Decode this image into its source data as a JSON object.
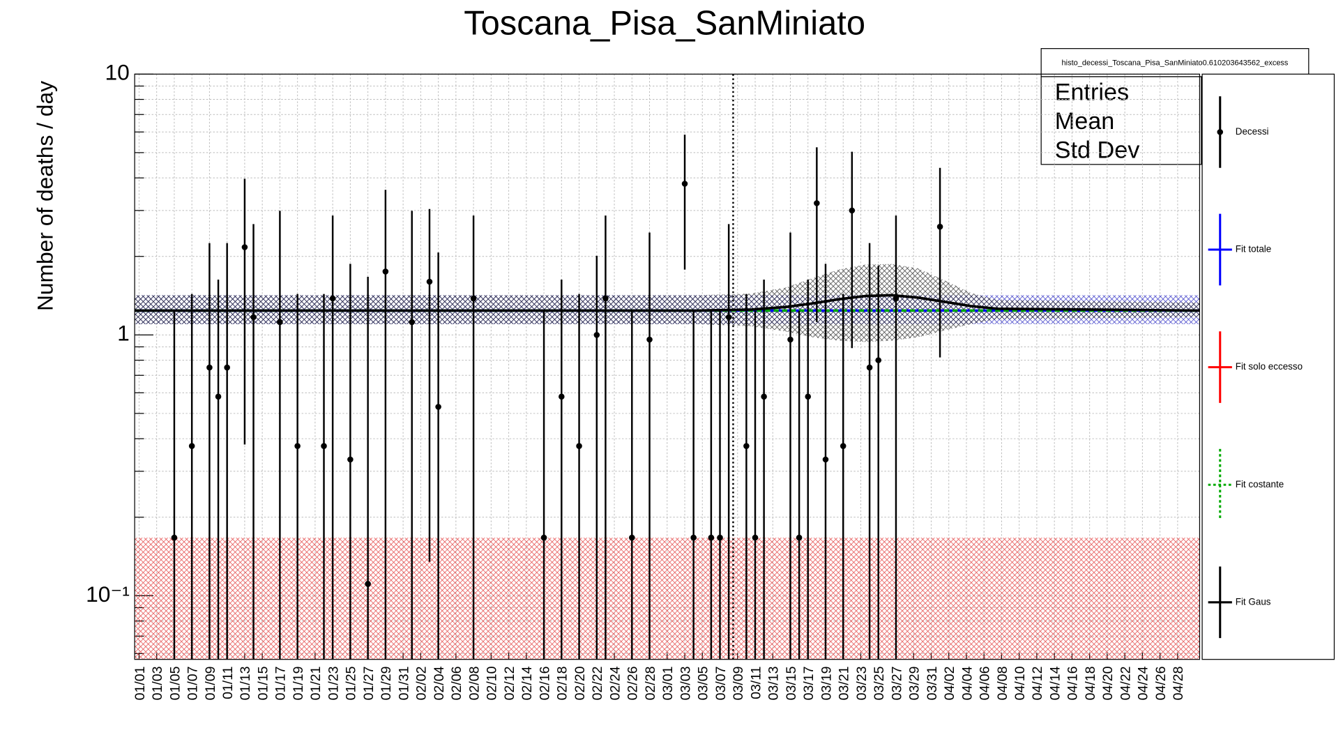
{
  "chart_data": {
    "type": "errorbar",
    "title": "Toscana_Pisa_SanMiniato",
    "y_label": "Number of deaths / day",
    "histogram_title": "histo_decessi_Toscana_Pisa_SanMiniato0.610203643562_excess",
    "stats_labels": [
      "Entries",
      "Mean",
      "Std Dev"
    ],
    "log_y": true,
    "grid": true,
    "categories": [
      "01/01",
      null,
      "01/03",
      null,
      "01/05",
      null,
      "01/07",
      null,
      "01/09",
      null,
      "01/11",
      null,
      "01/13",
      null,
      "01/15",
      null,
      "01/17",
      null,
      "01/19",
      null,
      "01/21",
      null,
      "01/23",
      null,
      "01/25",
      null,
      "01/27",
      null,
      "01/29",
      null,
      "01/31",
      null,
      "02/02",
      null,
      "02/04",
      null,
      "02/06",
      null,
      "02/08",
      null,
      "02/10",
      null,
      "02/12",
      null,
      "02/14",
      null,
      "02/16",
      null,
      "02/18",
      null,
      "02/20",
      null,
      "02/22",
      null,
      "02/24",
      null,
      "02/26",
      null,
      "02/28",
      null,
      "03/01",
      null,
      "03/03",
      null,
      "03/05",
      null,
      "03/07",
      null,
      "03/09",
      null,
      "03/11",
      null,
      "03/13",
      null,
      "03/15",
      null,
      "03/17",
      null,
      "03/19",
      null,
      "03/21",
      null,
      "03/23",
      null,
      "03/25",
      null,
      "03/27",
      null,
      "03/29",
      null,
      "03/31",
      null,
      "04/02",
      null,
      "04/04",
      null,
      "04/06",
      null,
      "04/08",
      null,
      "04/10",
      null,
      "04/12",
      null,
      "04/14",
      null,
      "04/16",
      null,
      "04/18",
      null,
      "04/20",
      null,
      "04/22",
      null,
      "04/24",
      null,
      "04/26",
      null,
      "04/28",
      null,
      null
    ],
    "xlim": [
      0,
      121
    ],
    "ylim": [
      0.057,
      10
    ],
    "yticks": [
      {
        "value": 0.1,
        "label": "10⁻¹"
      },
      1,
      10
    ],
    "yminorticks": [
      0.06,
      0.07,
      0.08,
      0.09,
      0.2,
      0.3,
      0.4,
      0.5,
      0.6,
      0.7,
      0.8,
      0.9,
      2,
      3,
      4,
      5,
      6,
      7,
      8,
      9
    ],
    "vline_x": 68,
    "series": [
      {
        "name": "Decessi",
        "color": "#000000",
        "x": [
          4,
          6,
          8,
          9,
          10,
          12,
          13,
          16,
          18,
          21,
          22,
          24,
          26,
          28,
          31,
          33,
          34,
          38,
          46,
          48,
          50,
          52,
          53,
          56,
          58,
          62,
          63,
          65,
          66,
          67,
          69,
          70,
          71,
          74,
          75,
          76,
          77,
          78,
          80,
          81,
          83,
          84,
          86,
          91
        ],
        "values": [
          0.167,
          0.375,
          0.75,
          0.58,
          0.75,
          2.17,
          1.17,
          1.12,
          0.375,
          0.375,
          1.38,
          0.333,
          0.111,
          1.75,
          1.12,
          1.6,
          0.53,
          1.38,
          0.167,
          0.58,
          0.375,
          1.0,
          1.38,
          0.167,
          0.96,
          3.8,
          0.167,
          0.167,
          0.167,
          1.17,
          0.375,
          0.167,
          0.58,
          0.96,
          0.167,
          0.58,
          3.2,
          0.333,
          0.375,
          3.0,
          0.75,
          0.8,
          1.38,
          2.6
        ],
        "errors_low": [
          0.167,
          0.375,
          0.75,
          0.58,
          0.75,
          1.79,
          1.17,
          1.12,
          0.375,
          0.375,
          1.38,
          0.333,
          0.111,
          1.75,
          1.12,
          1.465,
          0.53,
          1.38,
          0.167,
          0.58,
          0.375,
          1.0,
          1.38,
          0.167,
          0.96,
          2.02,
          0.167,
          0.167,
          0.167,
          1.17,
          0.375,
          0.167,
          0.58,
          0.96,
          0.167,
          0.58,
          2.08,
          0.333,
          0.375,
          2.11,
          0.75,
          0.8,
          1.38,
          1.78
        ],
        "errors_high": [
          1.07,
          1.06,
          1.5,
          1.05,
          1.5,
          1.8,
          1.49,
          1.87,
          1.06,
          1.06,
          1.49,
          1.54,
          1.56,
          1.85,
          1.87,
          1.44,
          1.54,
          1.49,
          1.07,
          1.05,
          1.06,
          1.01,
          1.49,
          1.07,
          1.51,
          2.06,
          1.07,
          1.07,
          1.07,
          1.49,
          1.06,
          1.07,
          1.05,
          1.51,
          1.07,
          1.05,
          2.04,
          1.54,
          1.06,
          2.04,
          1.5,
          1.04,
          1.49,
          1.77
        ]
      },
      {
        "name": "Fit totale",
        "color": "#0000ff",
        "x": [
          0,
          121
        ],
        "values": [
          1.24,
          1.24
        ],
        "band_low": [
          1.1,
          1.1
        ],
        "band_high": [
          1.42,
          1.42
        ]
      },
      {
        "name": "Fit solo eccesso",
        "color": "#ff0000",
        "x": [
          0,
          121
        ],
        "band_low": [
          0.01,
          0.01
        ],
        "band_high": [
          0.167,
          0.167
        ]
      },
      {
        "name": "Fit costante",
        "color": "#00aa00",
        "x": [
          0,
          121
        ],
        "values": [
          1.24,
          1.24
        ],
        "dashed": true
      },
      {
        "name": "Fit Gaus",
        "color": "#000000",
        "x": [
          0,
          64,
          70,
          74,
          77,
          80,
          83,
          86,
          89,
          92,
          95,
          98,
          121
        ],
        "values": [
          1.24,
          1.24,
          1.25,
          1.28,
          1.32,
          1.37,
          1.41,
          1.42,
          1.39,
          1.34,
          1.29,
          1.26,
          1.24
        ],
        "band_low": [
          1.1,
          1.1,
          1.08,
          1.03,
          0.98,
          0.95,
          0.94,
          0.95,
          0.98,
          1.04,
          1.1,
          1.15,
          1.17
        ],
        "band_high": [
          1.42,
          1.42,
          1.44,
          1.52,
          1.65,
          1.78,
          1.86,
          1.87,
          1.8,
          1.62,
          1.45,
          1.36,
          1.33
        ]
      }
    ]
  }
}
